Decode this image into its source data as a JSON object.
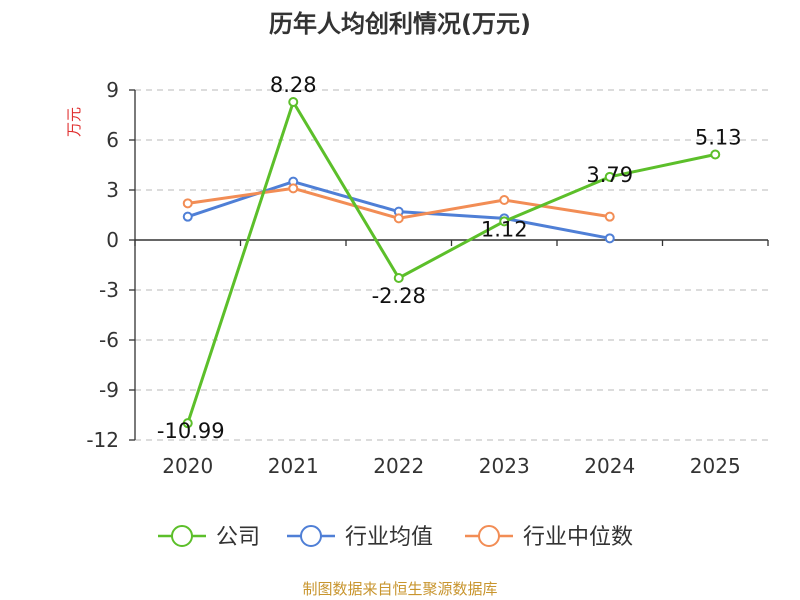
{
  "chart_data": {
    "type": "line",
    "title": "历年人均创利情况(万元)",
    "ylabel": "万元",
    "xlabel": "",
    "categories": [
      "2020",
      "2021",
      "2022",
      "2023",
      "2024",
      "2025"
    ],
    "ylim": [
      -12,
      9
    ],
    "yticks": [
      9,
      6,
      3,
      0,
      -3,
      -6,
      -9,
      -12
    ],
    "grid": true,
    "legend_position": "bottom",
    "series": [
      {
        "name": "公司",
        "color": "#5cbf2a",
        "values": [
          -10.99,
          8.28,
          -2.28,
          1.12,
          3.79,
          5.13
        ],
        "labels": [
          "-10.99",
          "8.28",
          "-2.28",
          "1.12",
          "3.79",
          "5.13"
        ]
      },
      {
        "name": "行业均值",
        "color": "#4f7fd6",
        "values": [
          1.4,
          3.5,
          1.7,
          1.3,
          0.1,
          null
        ]
      },
      {
        "name": "行业中位数",
        "color": "#f28d55",
        "values": [
          2.2,
          3.1,
          1.3,
          2.4,
          1.4,
          null
        ]
      }
    ]
  },
  "source": "制图数据来自恒生聚源数据库"
}
